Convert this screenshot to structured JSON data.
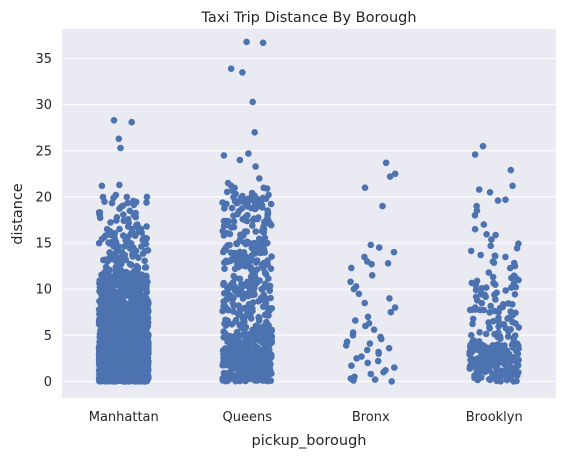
{
  "chart_data": {
    "type": "strip",
    "title": "Taxi Trip Distance By Borough",
    "xlabel": "pickup_borough",
    "ylabel": "distance",
    "categories": [
      "Manhattan",
      "Queens",
      "Bronx",
      "Brooklyn"
    ],
    "ylim": [
      -1.8,
      38.2
    ],
    "yticks": [
      0,
      5,
      10,
      15,
      20,
      25,
      30,
      35
    ],
    "grid": true,
    "point_color": "#4c72b0",
    "background_color": "#eaeaf2",
    "grid_color": "#ffffff",
    "series": [
      {
        "category": "Manhattan",
        "dense_distribution": [
          [
            0,
            4,
            2000
          ],
          [
            4,
            8,
            650
          ],
          [
            8,
            12,
            260
          ],
          [
            12,
            17,
            90
          ],
          [
            17,
            20,
            28
          ]
        ],
        "points": [
          20.2,
          20.0,
          21.2,
          21.3,
          25.3,
          26.3,
          28.1,
          28.3
        ]
      },
      {
        "category": "Queens",
        "dense_distribution": [
          [
            0,
            4,
            280
          ],
          [
            4,
            10,
            160
          ],
          [
            10,
            17,
            130
          ],
          [
            17,
            21,
            70
          ]
        ],
        "points": [
          21.2,
          21.5,
          22.0,
          23.3,
          24.0,
          24.5,
          24.7,
          27.0,
          30.3,
          33.5,
          33.9,
          36.7,
          36.8
        ]
      },
      {
        "category": "Bronx",
        "points": [
          0.0,
          0.1,
          0.2,
          0.3,
          0.5,
          0.8,
          1.0,
          1.2,
          1.5,
          1.7,
          2.0,
          2.2,
          2.5,
          2.7,
          3.0,
          3.2,
          3.4,
          3.6,
          3.9,
          4.1,
          4.3,
          4.6,
          4.8,
          5.0,
          5.3,
          5.6,
          6.0,
          6.3,
          6.6,
          7.0,
          7.5,
          8.0,
          8.5,
          9.0,
          9.5,
          10.0,
          10.3,
          10.8,
          11.5,
          12.3,
          12.7,
          12.8,
          13.0,
          13.5,
          14.0,
          14.5,
          14.8,
          19.0,
          21.0,
          22.2,
          22.5,
          23.7
        ]
      },
      {
        "category": "Brooklyn",
        "dense_distribution": [
          [
            0,
            4,
            170
          ],
          [
            4,
            8,
            50
          ],
          [
            8,
            12,
            35
          ],
          [
            12,
            16,
            16
          ]
        ],
        "points": [
          16.5,
          17.0,
          18.0,
          18.5,
          19.0,
          19.6,
          19.7,
          20.5,
          20.8,
          21.2,
          22.9,
          24.6,
          25.5
        ]
      }
    ]
  }
}
